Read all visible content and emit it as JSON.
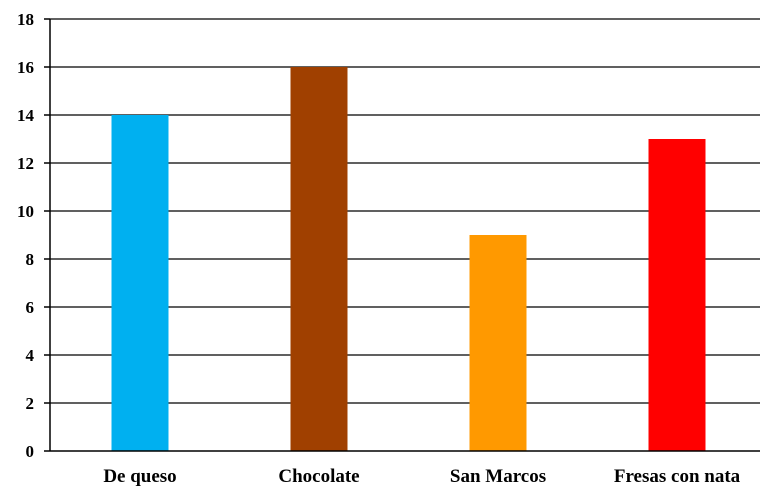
{
  "chart_data": {
    "type": "bar",
    "title": "",
    "xlabel": "",
    "ylabel": "",
    "categories": [
      "De queso",
      "Chocolate",
      "San Marcos",
      "Fresas con nata"
    ],
    "values": [
      14,
      16,
      9,
      13
    ],
    "colors": [
      "#00B0F0",
      "#A04000",
      "#FF9900",
      "#FF0000"
    ],
    "ylim": [
      0,
      18
    ],
    "yticks": [
      0,
      2,
      4,
      6,
      8,
      10,
      12,
      14,
      16,
      18
    ],
    "grid": true,
    "legend": "none"
  }
}
